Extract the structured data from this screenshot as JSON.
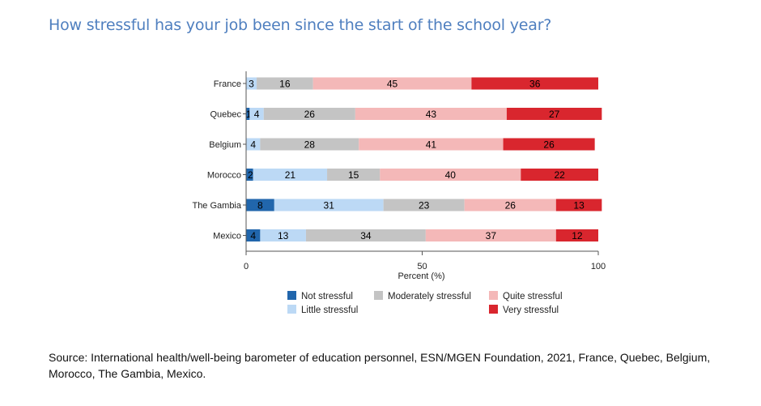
{
  "chart_data": {
    "type": "bar",
    "orientation": "horizontal",
    "stacked": true,
    "title": "How stressful has your job been since the start of the school year?",
    "xlabel": "Percent (%)",
    "ylabel": "",
    "xlim": [
      0,
      100
    ],
    "xticks": [
      0,
      50,
      100
    ],
    "categories": [
      "France",
      "Quebec",
      "Belgium",
      "Morocco",
      "The Gambia",
      "Mexico"
    ],
    "series": [
      {
        "name": "Not stressful",
        "color": "#2166ac",
        "values": [
          0,
          1,
          0,
          2,
          8,
          4
        ]
      },
      {
        "name": "Little stressful",
        "color": "#bcd9f5",
        "values": [
          3,
          4,
          4,
          21,
          31,
          13
        ]
      },
      {
        "name": "Moderately stressful",
        "color": "#c4c4c4",
        "values": [
          16,
          26,
          28,
          15,
          23,
          34
        ]
      },
      {
        "name": "Quite stressful",
        "color": "#f4b8b8",
        "values": [
          45,
          43,
          41,
          40,
          26,
          37
        ]
      },
      {
        "name": "Very stressful",
        "color": "#d9262e",
        "values": [
          36,
          27,
          26,
          22,
          13,
          12
        ]
      }
    ],
    "legend": [
      "Not stressful",
      "Little stressful",
      "Moderately stressful",
      "Quite stressful",
      "Very stressful"
    ],
    "legend_position": "bottom"
  },
  "source": "Source: International health/well-being barometer of education personnel, ESN/MGEN Foundation, 2021, France, Quebec, Belgium, Morocco, The Gambia, Mexico."
}
